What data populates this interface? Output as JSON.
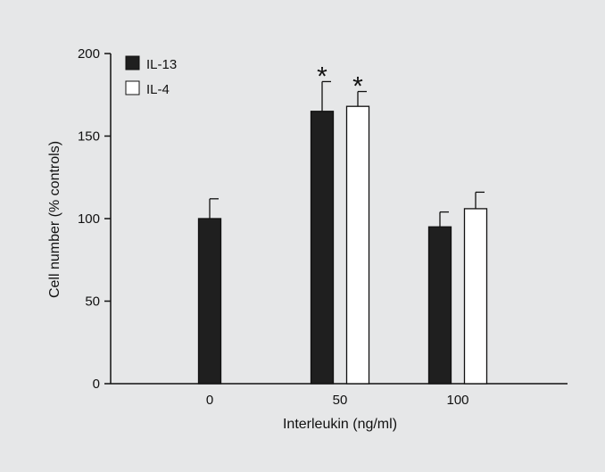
{
  "chart_data": {
    "type": "bar",
    "categories": [
      "0",
      "50",
      "100"
    ],
    "series": [
      {
        "name": "IL-13",
        "color": "#1f1f1f",
        "values": [
          100,
          165,
          95
        ],
        "errors": [
          12,
          18,
          9
        ],
        "significance": [
          "",
          "*",
          ""
        ]
      },
      {
        "name": "IL-4",
        "color": "#ffffff",
        "values": [
          null,
          168,
          106
        ],
        "errors": [
          null,
          9,
          10
        ],
        "significance": [
          "",
          "*",
          ""
        ]
      }
    ],
    "xlabel": "Interleukin (ng/ml)",
    "ylabel": "Cell number (% controls)",
    "ylim": [
      0,
      200
    ],
    "yticks": [
      "0",
      "50",
      "100",
      "150",
      "200"
    ],
    "legend_placement": "top-left",
    "grid": false
  }
}
